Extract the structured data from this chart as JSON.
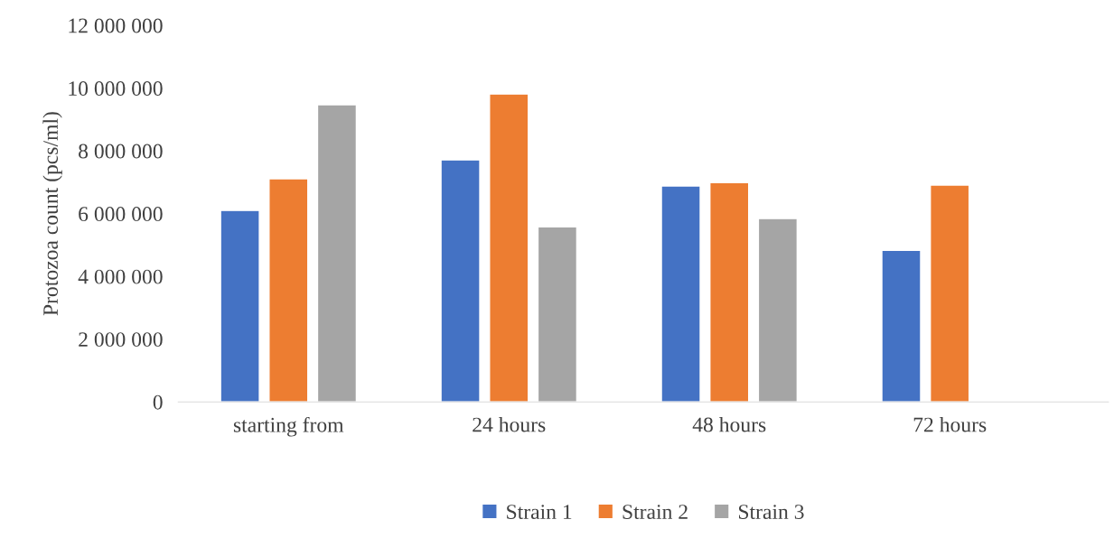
{
  "chart_data": {
    "type": "bar",
    "ylabel": "Protozoa count (pcs/ml)",
    "categories": [
      "starting from",
      "24 hours",
      "48 hours",
      "72 hours"
    ],
    "series": [
      {
        "name": "Strain 1",
        "color": "#4472c4",
        "values": [
          6100000,
          7710000,
          6880000,
          4830000
        ]
      },
      {
        "name": "Strain 2",
        "color": "#ed7d31",
        "values": [
          7110000,
          9810000,
          6990000,
          6910000
        ]
      },
      {
        "name": "Strain 3",
        "color": "#a5a5a5",
        "values": [
          9470000,
          5580000,
          5840000,
          null
        ]
      }
    ],
    "ylim": [
      0,
      12000000
    ],
    "yticks": [
      {
        "value": 0,
        "label": "0"
      },
      {
        "value": 2000000,
        "label": "2 000 000"
      },
      {
        "value": 4000000,
        "label": "4 000 000"
      },
      {
        "value": 6000000,
        "label": "6 000 000"
      },
      {
        "value": 8000000,
        "label": "8 000 000"
      },
      {
        "value": 10000000,
        "label": "10 000 000"
      },
      {
        "value": 12000000,
        "label": "12 000 000"
      }
    ],
    "grid": false,
    "legend": "bottom"
  }
}
